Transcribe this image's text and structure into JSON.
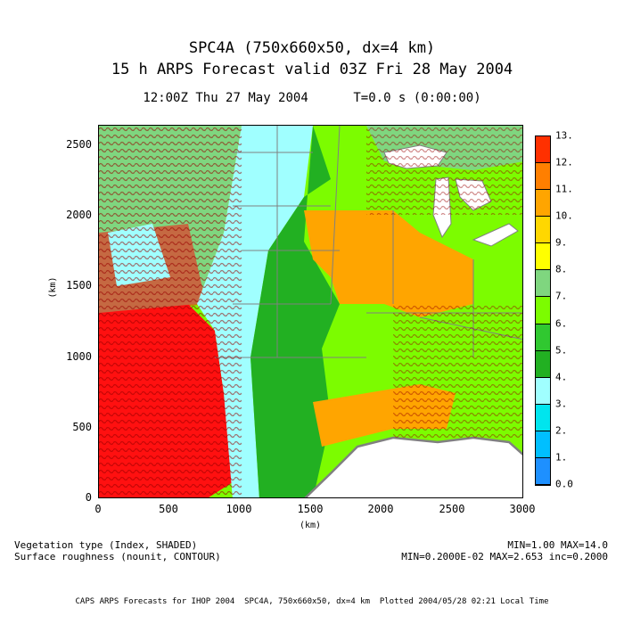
{
  "title_line1": "SPC4A (750x660x50, dx=4 km)",
  "title_line2": "15 h ARPS Forecast valid 03Z Fri 28 May 2004",
  "time_line": "12:00Z Thu 27 May 2004      T=0.0 s (0:00:00)",
  "x_axis": {
    "label": "(km)",
    "ticks": [
      "0",
      "500",
      "1000",
      "1500",
      "2000",
      "2500",
      "3000"
    ]
  },
  "y_axis": {
    "label": "(km)",
    "ticks": [
      "0",
      "500",
      "1000",
      "1500",
      "2000",
      "2500"
    ]
  },
  "colorbar": {
    "labels": [
      "0.0",
      "1.",
      "2.",
      "3.",
      "4.",
      "5.",
      "6.",
      "7.",
      "8.",
      "9.",
      "10.",
      "11.",
      "12.",
      "13."
    ],
    "colors": [
      "#1e90ff",
      "#00bfff",
      "#00e5ee",
      "#a0ffff",
      "#22b022",
      "#30c830",
      "#7cfc00",
      "#7fd67f",
      "#ffff00",
      "#ffd700",
      "#ffa500",
      "#ff7f00",
      "#ff3000"
    ]
  },
  "bottom": {
    "left_line1": "Vegetation type (Index, SHADED)",
    "left_line2": "Surface roughness (nounit, CONTOUR)",
    "right_line1": "MIN=1.00 MAX=14.0",
    "right_line2": "MIN=0.2000E-02 MAX=2.653 inc=0.2000"
  },
  "footer": "CAPS ARPS Forecasts for IHOP 2004  SPC4A, 750x660x50, dx=4 km  Plotted 2004/05/28 02:21 Local Time",
  "map_colors": {
    "desert": "#ff1010",
    "grassland": "#a0ffff",
    "crop": "#ffa500",
    "forest": "#7cfc00",
    "dark_forest": "#22b022",
    "water": "#ffffff",
    "contour": "#990000"
  }
}
